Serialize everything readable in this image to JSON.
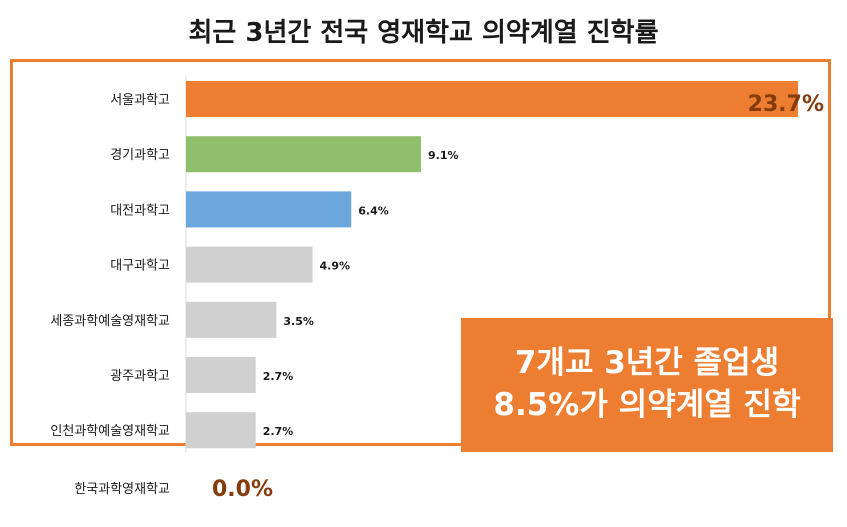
{
  "title": "최근 3년간 전국 영재학교 의약계열 진학률",
  "callout": {
    "line1": "7개교 3년간 졸업생",
    "line2": "8.5%가 의약계열 진학"
  },
  "chart_data": {
    "type": "bar",
    "orientation": "horizontal",
    "title": "최근 3년간 전국 영재학교 의약계열 진학률",
    "xlabel": "",
    "ylabel": "",
    "xlim": [
      0,
      23.7
    ],
    "grid": false,
    "legend": "none",
    "categories": [
      "서울과학고",
      "경기과학고",
      "대전과학고",
      "대구과학고",
      "세종과학예술영재학교",
      "광주과학고",
      "인천과학예술영재학교",
      "한국과학영재학교"
    ],
    "values": [
      23.7,
      9.1,
      6.4,
      4.9,
      3.5,
      2.7,
      2.7,
      0.0
    ],
    "labels": [
      "23.7%",
      "9.1%",
      "6.4%",
      "4.9%",
      "3.5%",
      "2.7%",
      "2.7%",
      "0.0%"
    ],
    "colors": [
      "#ED7D31",
      "#8FBF6A",
      "#6CA7DB",
      "#D0D0D0",
      "#D0D0D0",
      "#D0D0D0",
      "#D0D0D0",
      "#D0D0D0"
    ],
    "highlight_label_color": "#843C0C",
    "label_color": "#1a1a1a"
  }
}
